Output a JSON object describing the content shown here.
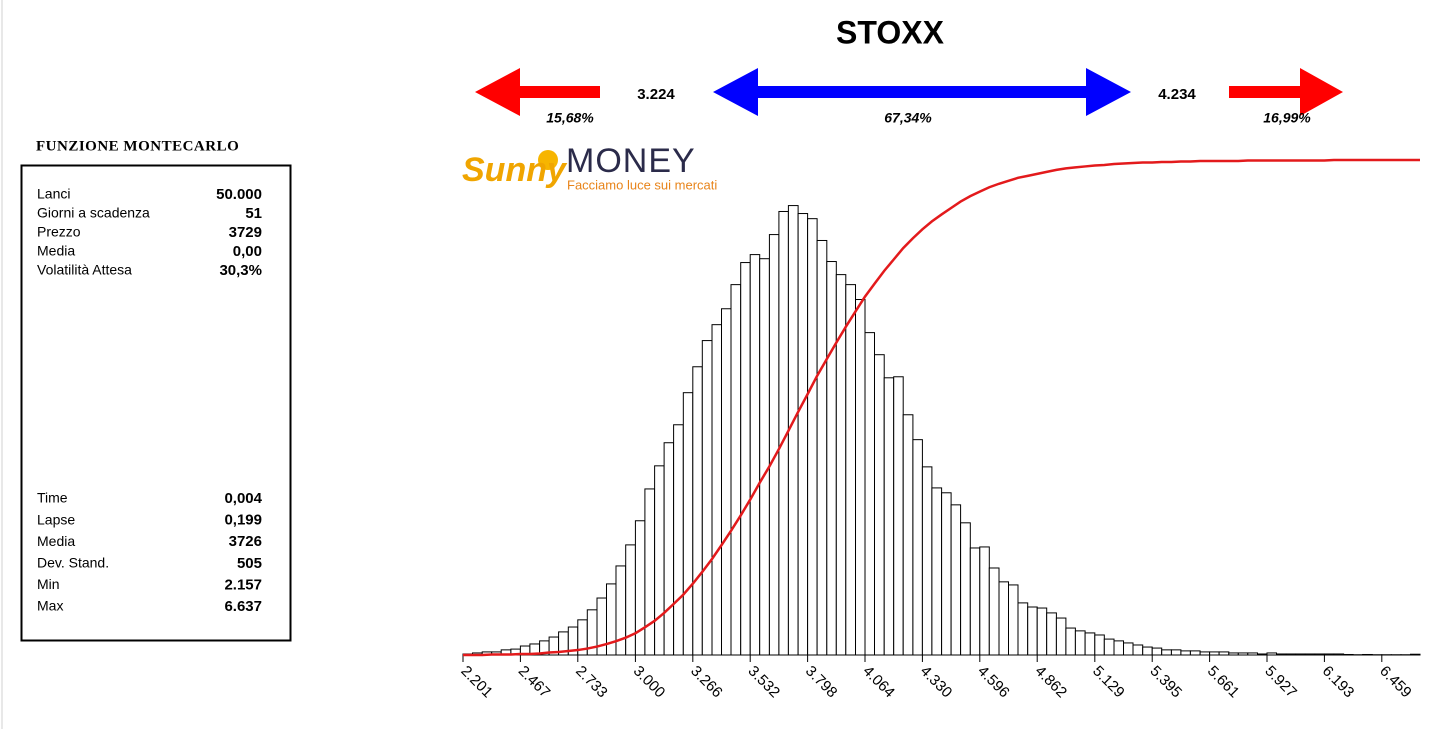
{
  "panel": {
    "title": "FUNZIONE MONTECARLO",
    "inputs": [
      {
        "label": "Lanci",
        "value": "50.000"
      },
      {
        "label": "Giorni a scadenza",
        "value": "51"
      },
      {
        "label": "Prezzo",
        "value": "3729"
      },
      {
        "label": "Media",
        "value": "0,00"
      },
      {
        "label": "Volatilità Attesa",
        "value": "30,3%"
      }
    ],
    "outputs": [
      {
        "label": "Time",
        "value": "0,004"
      },
      {
        "label": "Lapse",
        "value": "0,199"
      },
      {
        "label": "Media",
        "value": "3726"
      },
      {
        "label": "Dev. Stand.",
        "value": "505"
      },
      {
        "label": "Min",
        "value": "2.157"
      },
      {
        "label": "Max",
        "value": "6.637"
      }
    ]
  },
  "header": {
    "title": "STOXX",
    "lower_bound": "3.224",
    "upper_bound": "4.234",
    "below_pct": "15,68%",
    "inside_pct": "67,34%",
    "above_pct": "16,99%"
  },
  "logo": {
    "brand_1": "Sunny",
    "brand_2": "MONEY",
    "tagline": "Facciamo luce sui mercati"
  },
  "chart_data": {
    "type": "histogram",
    "bins": [
      2201,
      2245,
      2290,
      2334,
      2378,
      2423,
      2467,
      2511,
      2556,
      2600,
      2644,
      2689,
      2733,
      2777,
      2822,
      2866,
      2910,
      2955,
      3000,
      3044,
      3089,
      3133,
      3177,
      3222,
      3266,
      3310,
      3355,
      3399,
      3443,
      3488,
      3532,
      3576,
      3621,
      3665,
      3709,
      3754,
      3798,
      3842,
      3887,
      3931,
      3975,
      4020,
      4064,
      4108,
      4153,
      4197,
      4241,
      4286,
      4330,
      4374,
      4419,
      4463,
      4507,
      4552,
      4596,
      4640,
      4685,
      4729,
      4773,
      4818,
      4862,
      4906,
      4951,
      4995,
      5039,
      5084,
      5129,
      5173,
      5218,
      5262,
      5306,
      5351,
      5395,
      5439,
      5484,
      5528,
      5572,
      5617,
      5661,
      5705,
      5750,
      5794,
      5838,
      5883,
      5927,
      5971,
      6016,
      6060,
      6104,
      6149,
      6193,
      6237,
      6282,
      6326,
      6370,
      6415,
      6459,
      6503,
      6548,
      6592,
      6636
    ],
    "values": [
      4,
      8,
      12,
      12,
      20,
      23,
      35,
      43,
      55,
      70,
      90,
      109,
      137,
      176,
      222,
      277,
      347,
      429,
      523,
      647,
      737,
      827,
      897,
      1022,
      1123,
      1225,
      1287,
      1349,
      1443,
      1529,
      1560,
      1544,
      1638,
      1728,
      1751,
      1720,
      1700,
      1615,
      1533,
      1482,
      1443,
      1385,
      1256,
      1170,
      1080,
      1084,
      936,
      839,
      733,
      651,
      632,
      585,
      515,
      417,
      421,
      339,
      285,
      273,
      203,
      187,
      183,
      164,
      144,
      105,
      94,
      86,
      78,
      62,
      55,
      47,
      39,
      31,
      27,
      20,
      20,
      16,
      16,
      12,
      12,
      12,
      8,
      8,
      8,
      4,
      8,
      4,
      4,
      4,
      4,
      4,
      4,
      4,
      2,
      1,
      2,
      1,
      1,
      1,
      1,
      3
    ],
    "color": "#ffffff",
    "edgecolor": "#000000",
    "xlim": [
      2201,
      6636
    ],
    "xticks": [
      {
        "value": 2201,
        "label": "2.201"
      },
      {
        "value": 2467,
        "label": "2.467"
      },
      {
        "value": 2733,
        "label": "2.733"
      },
      {
        "value": 3000,
        "label": "3.000"
      },
      {
        "value": 3266,
        "label": "3.266"
      },
      {
        "value": 3532,
        "label": "3.532"
      },
      {
        "value": 3798,
        "label": "3.798"
      },
      {
        "value": 4064,
        "label": "4.064"
      },
      {
        "value": 4330,
        "label": "4.330"
      },
      {
        "value": 4596,
        "label": "4.596"
      },
      {
        "value": 4862,
        "label": "4.862"
      },
      {
        "value": 5129,
        "label": "5.129"
      },
      {
        "value": 5395,
        "label": "5.395"
      },
      {
        "value": 5661,
        "label": "5.661"
      },
      {
        "value": 5927,
        "label": "5.927"
      },
      {
        "value": 6193,
        "label": "6.193"
      },
      {
        "value": 6459,
        "label": "6.459"
      }
    ],
    "ylim": [
      0,
      1800
    ],
    "cdf": {
      "color": "#e31a1c",
      "y2lim": [
        0,
        1
      ],
      "values": [
        0,
        0,
        0.001,
        0.001,
        0.001,
        0.002,
        0.002,
        0.003,
        0.005,
        0.006,
        0.008,
        0.01,
        0.013,
        0.017,
        0.022,
        0.028,
        0.035,
        0.044,
        0.056,
        0.069,
        0.085,
        0.103,
        0.122,
        0.144,
        0.168,
        0.194,
        0.222,
        0.251,
        0.282,
        0.314,
        0.348,
        0.381,
        0.416,
        0.453,
        0.491,
        0.527,
        0.564,
        0.598,
        0.631,
        0.663,
        0.694,
        0.724,
        0.75,
        0.776,
        0.799,
        0.822,
        0.842,
        0.86,
        0.876,
        0.89,
        0.903,
        0.916,
        0.927,
        0.936,
        0.945,
        0.952,
        0.958,
        0.964,
        0.968,
        0.972,
        0.976,
        0.98,
        0.983,
        0.985,
        0.987,
        0.989,
        0.99,
        0.992,
        0.993,
        0.994,
        0.995,
        0.995,
        0.996,
        0.996,
        0.997,
        0.997,
        0.998,
        0.998,
        0.998,
        0.998,
        0.998,
        0.999,
        0.999,
        0.999,
        0.999,
        0.999,
        0.999,
        0.999,
        0.999,
        0.999,
        1,
        1,
        1,
        1,
        1,
        1,
        1,
        1,
        1,
        1
      ]
    }
  }
}
